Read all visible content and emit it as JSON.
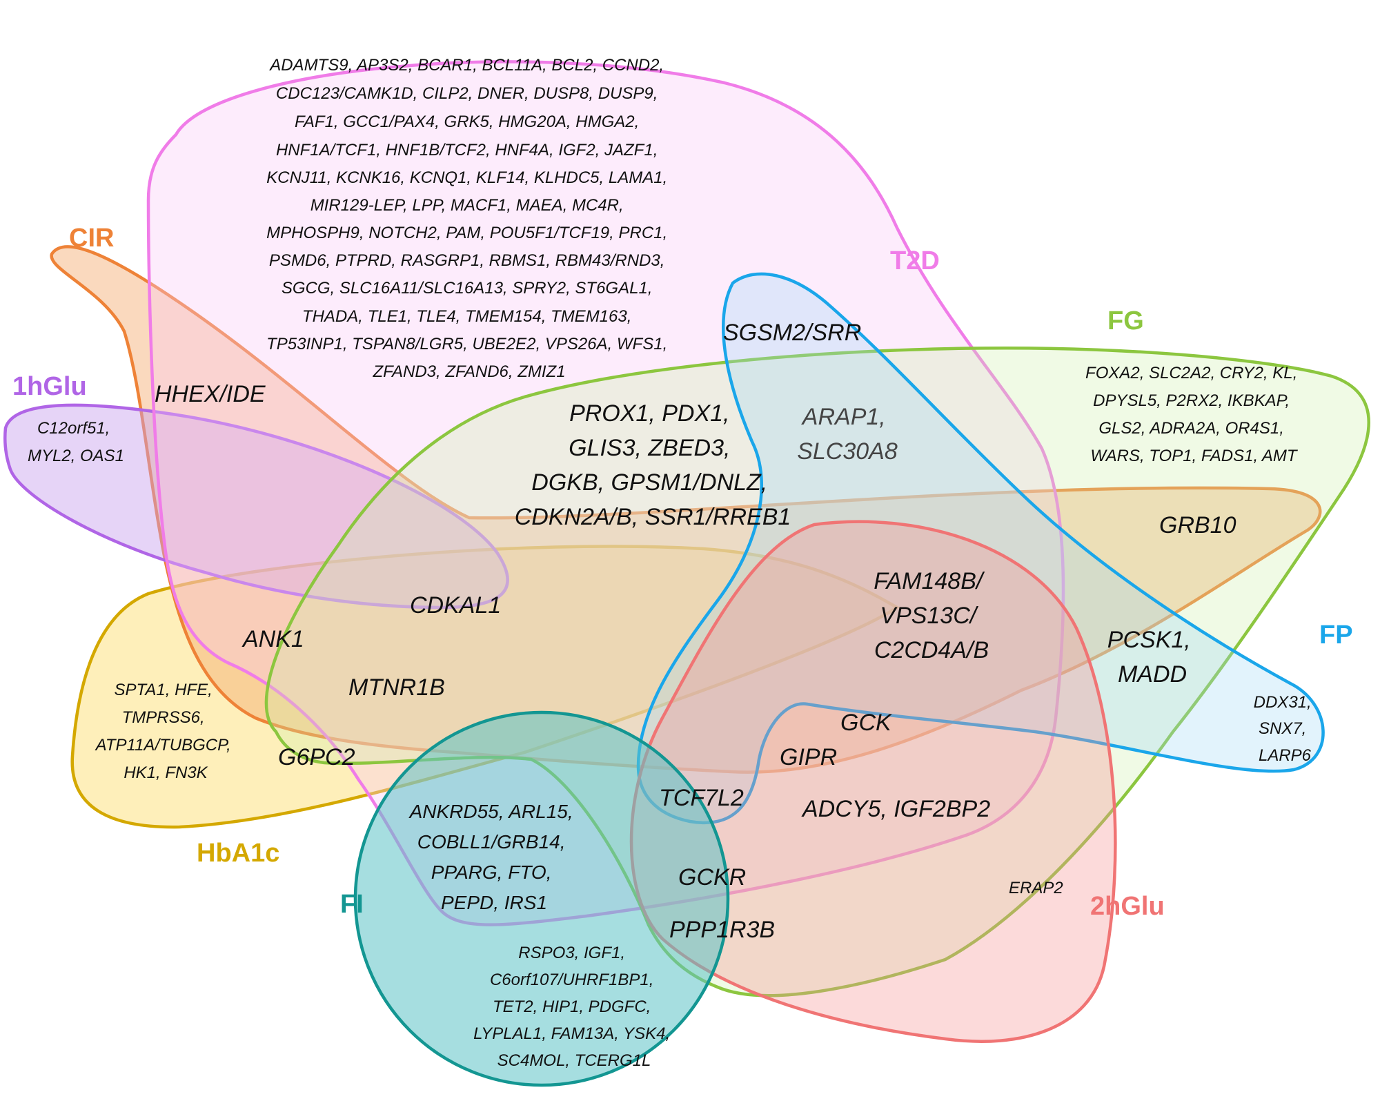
{
  "sets": {
    "t2d": {
      "label": "T2D",
      "color": "#f07ce8",
      "fill": "rgba(250,200,246,0.35)"
    },
    "cir": {
      "label": "CIR",
      "color": "#ee8237",
      "fill": "rgba(245,170,110,0.45)"
    },
    "fg": {
      "label": "FG",
      "color": "#8cc63f",
      "fill": "rgba(205,238,170,0.30)"
    },
    "fp": {
      "label": "FP",
      "color": "#1aa6ea",
      "fill": "rgba(160,215,245,0.30)"
    },
    "oneh": {
      "label": "1hGlu",
      "color": "#b065e6",
      "fill": "rgba(200,160,238,0.45)"
    },
    "hba1c": {
      "label": "HbA1c",
      "color": "#d4a800",
      "fill": "rgba(253,228,140,0.60)"
    },
    "fi": {
      "label": "FI",
      "color": "#139692",
      "fill": "rgba(92,195,198,0.55)"
    },
    "twoh": {
      "label": "2hGlu",
      "color": "#f07474",
      "fill": "rgba(245,150,150,0.35)"
    }
  },
  "genes": {
    "t2d_only": [
      "ADAMTS9, AP3S2, BCAR1, BCL11A, BCL2, CCND2,",
      "CDC123/CAMK1D, CILP2, DNER, DUSP8, DUSP9,",
      "FAF1, GCC1/PAX4, GRK5, HMG20A, HMGA2,",
      "HNF1A/TCF1, HNF1B/TCF2, HNF4A, IGF2, JAZF1,",
      "KCNJ11, KCNK16, KCNQ1, KLF14, KLHDC5, LAMA1,",
      "MIR129-LEP, LPP, MACF1, MAEA, MC4R,",
      "MPHOSPH9, NOTCH2, PAM, POU5F1/TCF19, PRC1,",
      "PSMD6, PTPRD, RASGRP1, RBMS1, RBM43/RND3,",
      "SGCG, SLC16A11/SLC16A13, SPRY2, ST6GAL1,",
      "THADA, TLE1, TLE4, TMEM154, TMEM163,",
      "TP53INP1, TSPAN8/LGR5, UBE2E2, VPS26A, WFS1,",
      "ZFAND3, ZFAND6, ZMIZ1"
    ],
    "oneh_only": [
      "C12orf51,",
      "MYL2, OAS1"
    ],
    "fg_only": [
      "FOXA2, SLC2A2, CRY2, KL,",
      "DPYSL5, P2RX2, IKBKAP,",
      "GLS2, ADRA2A, OR4S1,",
      "WARS, TOP1, FADS1, AMT"
    ],
    "fp_only": [
      "DDX31,",
      "SNX7,",
      "LARP6"
    ],
    "hba1c_only": [
      "SPTA1, HFE,",
      "TMPRSS6,",
      "ATP11A/TUBGCP,",
      "HK1, FN3K"
    ],
    "fi_only": [
      "RSPO3, IGF1,",
      "C6orf107/UHRF1BP1,",
      "TET2, HIP1, PDGFC,",
      "LYPLAL1, FAM13A, YSK4,",
      "SC4MOL, TCERG1L"
    ],
    "t2d_fg": [
      "PROX1, PDX1,",
      "GLIS3, ZBED3,",
      "DGKB, GPSM1/DNLZ,",
      "CDKN2A/B, SSR1/RREB1"
    ],
    "t2d_fi": [
      "ANKRD55, ARL15,",
      "COBLL1/GRB14,",
      "PPARG, FTO,",
      "PEPD, IRS1"
    ],
    "t2d_fp_fg": [
      "ARAP1,",
      "SLC30A8"
    ],
    "fam148b": [
      "FAM148B/",
      "VPS13C/",
      "C2CD4A/B"
    ],
    "pcsk1": [
      "PCSK1,",
      "MADD"
    ],
    "sgsm2": "SGSM2/SRR",
    "hhex": "HHEX/IDE",
    "cdkal1": "CDKAL1",
    "ank1": "ANK1",
    "mtnr1b": "MTNR1B",
    "g6pc2": "G6PC2",
    "grb10": "GRB10",
    "gck": "GCK",
    "gipr": "GIPR",
    "tcf7l2": "TCF7L2",
    "adcy5": "ADCY5, IGF2BP2",
    "gckr": "GCKR",
    "ppp1r3b": "PPP1R3B",
    "erap2": "ERAP2"
  }
}
